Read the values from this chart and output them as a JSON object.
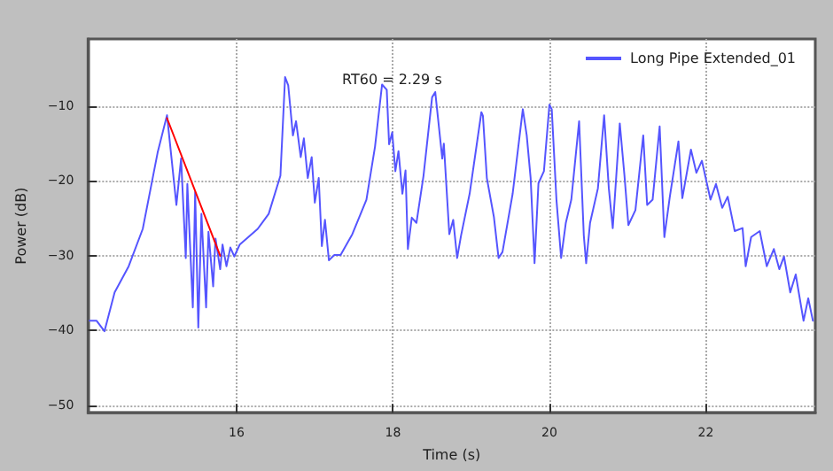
{
  "chart_data": {
    "type": "line",
    "xlabel": "Time (s)",
    "ylabel": "Power (dB)",
    "annotations": [
      "RT60 = 2.29 s"
    ],
    "xlim": [
      14.1,
      23.4
    ],
    "xticks": [
      16,
      18,
      20,
      22
    ],
    "ylim": [
      -51,
      -1
    ],
    "yticks": [
      -50,
      -40,
      -30,
      -20,
      -10
    ],
    "grid": true,
    "legend": "top right",
    "marker": "none",
    "line_style": "solid",
    "series": [
      {
        "name": "Long Pipe Extended_01",
        "color": "#5555ff",
        "x": [
          14.12,
          14.21,
          14.31,
          14.44,
          14.62,
          14.8,
          14.99,
          15.11,
          15.23,
          15.29,
          15.35,
          15.37,
          15.44,
          15.47,
          15.51,
          15.55,
          15.61,
          15.64,
          15.7,
          15.73,
          15.79,
          15.82,
          15.87,
          15.92,
          15.97,
          16.04,
          16.27,
          16.41,
          16.56,
          16.62,
          16.66,
          16.72,
          16.76,
          16.82,
          16.86,
          16.91,
          16.96,
          17.0,
          17.05,
          17.09,
          17.13,
          17.18,
          17.25,
          17.33,
          17.48,
          17.66,
          17.77,
          17.86,
          17.92,
          17.95,
          17.99,
          18.03,
          18.07,
          18.12,
          18.16,
          18.19,
          18.24,
          18.3,
          18.39,
          18.5,
          18.54,
          18.63,
          18.65,
          18.72,
          18.77,
          18.82,
          18.87,
          18.98,
          19.13,
          19.15,
          19.2,
          19.29,
          19.35,
          19.4,
          19.53,
          19.66,
          19.71,
          19.76,
          19.81,
          19.86,
          19.93,
          20.0,
          20.03,
          20.09,
          20.15,
          20.21,
          20.28,
          20.38,
          20.44,
          20.47,
          20.52,
          20.62,
          20.7,
          20.76,
          20.81,
          20.84,
          20.9,
          20.96,
          21.01,
          21.1,
          21.2,
          21.25,
          21.32,
          21.41,
          21.47,
          21.54,
          21.65,
          21.7,
          21.81,
          21.88,
          21.95,
          22.06,
          22.13,
          22.21,
          22.28,
          22.37,
          22.47,
          22.51,
          22.58,
          22.69,
          22.78,
          22.87,
          22.94,
          23.0,
          23.08,
          23.15,
          23.25,
          23.31,
          23.37
        ],
        "values": [
          -38.7,
          -38.7,
          -40.1,
          -34.9,
          -31.4,
          -26.4,
          -16.2,
          -11.2,
          -23.2,
          -17,
          -30.3,
          -20.4,
          -36.9,
          -21.5,
          -39.6,
          -24.4,
          -36.9,
          -26.8,
          -34.1,
          -27.7,
          -31.8,
          -28.5,
          -31.4,
          -28.9,
          -30.1,
          -28.5,
          -26.4,
          -24.4,
          -19.3,
          -6.1,
          -7.2,
          -13.9,
          -12,
          -16.8,
          -14.3,
          -19.6,
          -16.8,
          -22.9,
          -19.6,
          -28.7,
          -25.2,
          -30.6,
          -29.9,
          -29.9,
          -27.1,
          -22.5,
          -15.4,
          -7.1,
          -7.8,
          -15.1,
          -13.5,
          -18.7,
          -16,
          -21.7,
          -18.6,
          -29.1,
          -24.9,
          -25.6,
          -19.3,
          -8.8,
          -8.1,
          -17,
          -15,
          -27.1,
          -25.2,
          -30.3,
          -27.3,
          -21.7,
          -10.8,
          -11.3,
          -19.6,
          -24.8,
          -30.3,
          -29.5,
          -21.7,
          -10.4,
          -13.9,
          -19.6,
          -31,
          -20.3,
          -18.7,
          -9.8,
          -10.4,
          -22.5,
          -30.3,
          -25.6,
          -22.5,
          -12,
          -27.3,
          -31,
          -25.6,
          -21,
          -11.2,
          -21,
          -26.3,
          -21.7,
          -12.3,
          -19.3,
          -25.9,
          -23.9,
          -13.9,
          -23.2,
          -22.5,
          -12.7,
          -27.5,
          -22.1,
          -14.7,
          -22.3,
          -15.8,
          -18.9,
          -17.3,
          -22.5,
          -20.4,
          -23.6,
          -22.1,
          -26.7,
          -26.3,
          -31.4,
          -27.5,
          -26.7,
          -31.4,
          -29.1,
          -31.8,
          -30.1,
          -34.9,
          -32.5,
          -38.7,
          -35.7,
          -38.7
        ]
      },
      {
        "color": "#ff0000",
        "x": [
          15.11,
          15.79
        ],
        "values": [
          -11.6,
          -30
        ]
      }
    ]
  }
}
